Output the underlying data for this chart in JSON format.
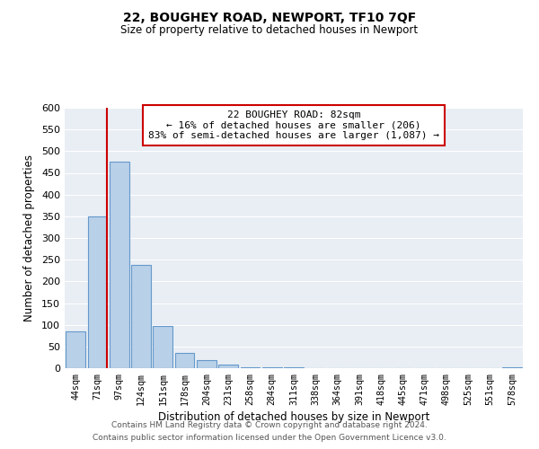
{
  "title": "22, BOUGHEY ROAD, NEWPORT, TF10 7QF",
  "subtitle": "Size of property relative to detached houses in Newport",
  "xlabel": "Distribution of detached houses by size in Newport",
  "ylabel": "Number of detached properties",
  "bar_labels": [
    "44sqm",
    "71sqm",
    "97sqm",
    "124sqm",
    "151sqm",
    "178sqm",
    "204sqm",
    "231sqm",
    "258sqm",
    "284sqm",
    "311sqm",
    "338sqm",
    "364sqm",
    "391sqm",
    "418sqm",
    "445sqm",
    "471sqm",
    "498sqm",
    "525sqm",
    "551sqm",
    "578sqm"
  ],
  "bar_values": [
    85,
    350,
    475,
    237,
    97,
    35,
    18,
    8,
    3,
    2,
    2,
    1,
    1,
    1,
    1,
    1,
    1,
    1,
    1,
    1,
    2
  ],
  "bar_color": "#b8d0e8",
  "bar_edge_color": "#6699cc",
  "marker_color": "#cc0000",
  "annotation_title": "22 BOUGHEY ROAD: 82sqm",
  "annotation_line1": "← 16% of detached houses are smaller (206)",
  "annotation_line2": "83% of semi-detached houses are larger (1,087) →",
  "annotation_box_color": "#ffffff",
  "annotation_box_edge": "#cc0000",
  "ylim": [
    0,
    600
  ],
  "yticks": [
    0,
    50,
    100,
    150,
    200,
    250,
    300,
    350,
    400,
    450,
    500,
    550,
    600
  ],
  "footer1": "Contains HM Land Registry data © Crown copyright and database right 2024.",
  "footer2": "Contains public sector information licensed under the Open Government Licence v3.0.",
  "bg_color": "#e8eef4",
  "fig_bg": "#ffffff"
}
